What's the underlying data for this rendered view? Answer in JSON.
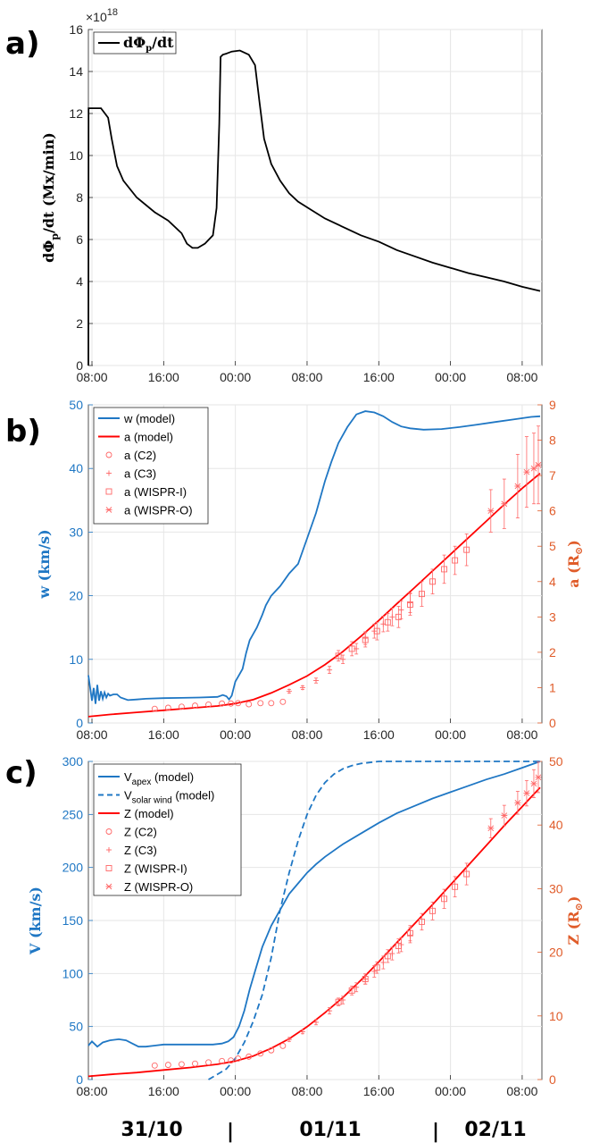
{
  "chart_data": [
    {
      "panel_label": "a)",
      "type": "line",
      "ylabel_parts": [
        "dΦ",
        "p",
        "/dt (Mx/min)"
      ],
      "y_multiplier_base": "×10",
      "y_multiplier_exp": "18",
      "ylim": [
        0,
        16
      ],
      "y_ticks": [
        "0",
        "2",
        "4",
        "6",
        "8",
        "10",
        "12",
        "14",
        "16"
      ],
      "x_ticks": [
        "08:00",
        "16:00",
        "00:00",
        "08:00",
        "16:00",
        "00:00",
        "08:00"
      ],
      "x_tick_hours": [
        8,
        16,
        24,
        32,
        40,
        48,
        56
      ],
      "xlim_hours": [
        7.6,
        58.2
      ],
      "legend": [
        {
          "label_parts": [
            "dΦ",
            "p",
            "/dt"
          ],
          "color": "#000000",
          "style": "solid"
        }
      ],
      "series": [
        {
          "name": "dΦp/dt",
          "color": "#000000",
          "x": [
            7.6,
            7.62,
            7.8,
            9,
            9.8,
            10.2,
            10.8,
            11.5,
            13,
            15,
            16.5,
            18,
            18.6,
            19.2,
            19.8,
            20.6,
            21.5,
            21.9,
            22.2,
            22.35,
            22.6,
            23,
            23.6,
            24.5,
            25.5,
            26.2,
            26.7,
            27.2,
            28,
            29,
            30,
            31,
            32.5,
            34,
            36,
            38,
            40,
            42,
            44,
            46,
            48,
            50,
            52,
            54,
            56,
            58
          ],
          "y": [
            0,
            12.25,
            12.25,
            12.25,
            11.8,
            10.8,
            9.5,
            8.8,
            8.0,
            7.3,
            6.9,
            6.3,
            5.8,
            5.6,
            5.6,
            5.8,
            6.2,
            7.5,
            11.5,
            14.7,
            14.8,
            14.85,
            14.95,
            15.0,
            14.8,
            14.3,
            12.5,
            10.8,
            9.6,
            8.8,
            8.2,
            7.8,
            7.4,
            7.0,
            6.6,
            6.2,
            5.9,
            5.5,
            5.2,
            4.9,
            4.65,
            4.4,
            4.2,
            4.0,
            3.75,
            3.55
          ]
        }
      ]
    },
    {
      "panel_label": "b)",
      "type": "line",
      "ylabel_left": "w (km/s)",
      "ylabel_right_parts": [
        "a (R",
        "⊙",
        ")"
      ],
      "ylim_left": [
        0,
        50
      ],
      "ylim_right": [
        0,
        9
      ],
      "y_ticks_left": [
        "0",
        "10",
        "20",
        "30",
        "40",
        "50"
      ],
      "y_ticks_right": [
        "0",
        "1",
        "2",
        "3",
        "4",
        "5",
        "6",
        "7",
        "8",
        "9"
      ],
      "x_ticks": [
        "08:00",
        "16:00",
        "00:00",
        "08:00",
        "16:00",
        "00:00",
        "08:00"
      ],
      "x_tick_hours": [
        8,
        16,
        24,
        32,
        40,
        48,
        56
      ],
      "xlim_hours": [
        7.6,
        58.2
      ],
      "colors": {
        "left_axis": "#1f77c4",
        "right_axis": "#e05c2a",
        "model_a": "#ff0000",
        "obs": "#ff6666"
      },
      "legend": [
        "w (model)",
        "a (model)",
        "a (C2)",
        "a (C3)",
        "a (WISPR-I)",
        "a (WISPR-O)"
      ],
      "series": [
        {
          "name": "w (model)",
          "axis": "left",
          "color": "#1f77c4",
          "x": [
            7.6,
            8.0,
            8.2,
            8.4,
            8.6,
            8.8,
            9.0,
            9.2,
            9.4,
            9.6,
            9.8,
            10.0,
            10.4,
            10.8,
            11.2,
            12,
            13,
            14,
            16,
            18,
            20,
            22,
            22.6,
            23.0,
            23.3,
            23.6,
            24,
            24.4,
            24.8,
            25.2,
            25.6,
            26,
            26.4,
            27,
            27.4,
            28,
            29,
            29.5,
            30,
            31,
            32,
            33,
            34,
            34.7,
            35.5,
            36.5,
            37.5,
            38.5,
            39.5,
            40.5,
            41.5,
            42.5,
            43.5,
            45,
            47,
            49,
            51,
            53,
            55,
            57,
            58
          ],
          "y": [
            7.5,
            3.5,
            5.5,
            3.0,
            6.0,
            3.5,
            5.0,
            3.8,
            4.8,
            4.0,
            4.6,
            4.3,
            4.5,
            4.5,
            4.0,
            3.6,
            3.7,
            3.8,
            3.9,
            3.95,
            4.0,
            4.1,
            4.4,
            4.2,
            3.7,
            4.3,
            6.5,
            7.5,
            8.5,
            11,
            13,
            14,
            15,
            17,
            18.5,
            20,
            21.5,
            22.5,
            23.5,
            25,
            29,
            33,
            38,
            41,
            44,
            46.5,
            48.5,
            49,
            48.8,
            48.2,
            47.3,
            46.6,
            46.3,
            46.1,
            46.2,
            46.5,
            46.9,
            47.3,
            47.7,
            48.1,
            48.2
          ]
        },
        {
          "name": "a (model)",
          "axis": "right",
          "color": "#ff0000",
          "x": [
            7.6,
            10,
            13,
            16,
            19,
            22,
            24,
            26,
            28,
            30,
            32,
            34,
            36,
            38,
            40,
            42,
            44,
            46,
            48,
            50,
            52,
            54,
            56,
            58
          ],
          "y": [
            0.18,
            0.24,
            0.3,
            0.36,
            0.42,
            0.48,
            0.55,
            0.66,
            0.85,
            1.08,
            1.33,
            1.65,
            2.02,
            2.45,
            2.9,
            3.37,
            3.83,
            4.3,
            4.77,
            5.24,
            5.71,
            6.18,
            6.64,
            7.06
          ]
        },
        {
          "name": "a (C2)",
          "axis": "right",
          "marker": "circle",
          "x": [
            15,
            16.5,
            18,
            19.5,
            21,
            22.5,
            23.5,
            24.3,
            25.5,
            26.8,
            28,
            29.3
          ],
          "y": [
            0.4,
            0.43,
            0.46,
            0.49,
            0.52,
            0.55,
            0.55,
            0.56,
            0.53,
            0.56,
            0.56,
            0.6
          ]
        },
        {
          "name": "a (C3)",
          "axis": "right",
          "marker": "plus",
          "x": [
            30,
            31.5,
            33,
            34.5,
            36,
            37.5,
            38.5,
            39.5,
            40.5,
            41.5,
            42.5,
            43.5
          ],
          "y": [
            0.9,
            1.0,
            1.2,
            1.5,
            1.8,
            2.1,
            2.4,
            2.6,
            2.8,
            3.0,
            3.2,
            3.4
          ],
          "err": [
            0.05,
            0.05,
            0.07,
            0.1,
            0.12,
            0.15,
            0.18,
            0.2,
            0.22,
            0.25,
            0.25,
            0.28
          ]
        },
        {
          "name": "a (WISPR-I)",
          "axis": "right",
          "marker": "square",
          "x": [
            35.5,
            37,
            38.5,
            39.8,
            41,
            42.2,
            43.5,
            44.8,
            46,
            47.3,
            48.5,
            49.8
          ],
          "y": [
            1.9,
            2.1,
            2.35,
            2.6,
            2.85,
            3.0,
            3.35,
            3.65,
            4.0,
            4.35,
            4.6,
            4.9
          ],
          "err": [
            0.15,
            0.2,
            0.2,
            0.25,
            0.25,
            0.3,
            0.3,
            0.35,
            0.35,
            0.4,
            0.4,
            0.45
          ]
        },
        {
          "name": "a (WISPR-O)",
          "axis": "right",
          "marker": "star",
          "x": [
            52.5,
            54,
            55.5,
            56.5,
            57.3,
            57.8
          ],
          "y": [
            6.0,
            6.2,
            6.7,
            7.1,
            7.2,
            7.3
          ],
          "err": [
            0.6,
            0.7,
            0.9,
            1.0,
            1.0,
            1.1
          ]
        }
      ]
    },
    {
      "panel_label": "c)",
      "type": "line",
      "ylabel_left": "V (km/s)",
      "ylabel_right_parts": [
        "Z (R",
        "⊙",
        ")"
      ],
      "ylim_left": [
        0,
        300
      ],
      "ylim_right": [
        0,
        50
      ],
      "y_ticks_left": [
        "0",
        "50",
        "100",
        "150",
        "200",
        "250",
        "300"
      ],
      "y_ticks_right": [
        "0",
        "10",
        "20",
        "30",
        "40",
        "50"
      ],
      "x_ticks": [
        "08:00",
        "16:00",
        "00:00",
        "08:00",
        "16:00",
        "00:00",
        "08:00"
      ],
      "x_tick_hours": [
        8,
        16,
        24,
        32,
        40,
        48,
        56
      ],
      "xlim_hours": [
        7.6,
        58.2
      ],
      "colors": {
        "left_axis": "#1f77c4",
        "right_axis": "#e05c2a",
        "model_z": "#ff0000",
        "obs": "#ff6666"
      },
      "legend": [
        {
          "label": "V",
          "sub": "apex",
          "rest": " (model)"
        },
        {
          "label": "V",
          "sub": "solar wind",
          "rest": " (model)"
        },
        {
          "label": "Z (model)"
        },
        {
          "label": "Z (C2)"
        },
        {
          "label": "Z (C3)"
        },
        {
          "label": "Z (WISPR-I)"
        },
        {
          "label": "Z (WISPR-O)"
        }
      ],
      "series": [
        {
          "name": "Vapex (model)",
          "axis": "left",
          "color": "#1f77c4",
          "x": [
            7.6,
            8.0,
            8.6,
            9.2,
            10,
            11,
            11.8,
            12.5,
            13.2,
            14,
            15,
            16,
            18,
            20,
            21.5,
            22.5,
            23.2,
            23.8,
            24.4,
            25,
            25.6,
            26.3,
            27,
            28,
            29,
            30,
            31,
            32,
            33,
            34,
            36,
            38,
            40,
            42,
            44,
            46,
            48,
            50,
            52,
            54,
            56,
            58
          ],
          "y": [
            32,
            36,
            31,
            35,
            37,
            38,
            37,
            34,
            31,
            31,
            32,
            33,
            33,
            33,
            33,
            34,
            36,
            40,
            50,
            65,
            85,
            105,
            125,
            145,
            160,
            175,
            185,
            195,
            203,
            210,
            222,
            232,
            242,
            251,
            258,
            265,
            271,
            277,
            283,
            288,
            294,
            300
          ]
        },
        {
          "name": "Vsolar wind (model)",
          "axis": "left",
          "color": "#1f77c4",
          "style": "dashed",
          "x": [
            21,
            22,
            23,
            24,
            25,
            26,
            27,
            28,
            29,
            30,
            31,
            32,
            33,
            34,
            35,
            36,
            37,
            38,
            39,
            40,
            41,
            42,
            44,
            46,
            58
          ],
          "y": [
            0,
            5,
            10,
            20,
            35,
            55,
            80,
            115,
            160,
            195,
            225,
            250,
            268,
            280,
            288,
            293,
            296,
            298,
            299,
            300,
            300,
            300,
            300,
            300,
            300
          ]
        },
        {
          "name": "Z (model)",
          "axis": "right",
          "color": "#ff0000",
          "x": [
            7.6,
            10,
            13,
            16,
            19,
            22,
            24,
            26,
            28,
            30,
            32,
            34,
            36,
            38,
            40,
            42,
            44,
            46,
            48,
            50,
            52,
            54,
            56,
            58
          ],
          "y": [
            0.5,
            0.8,
            1.1,
            1.5,
            1.9,
            2.4,
            2.9,
            3.7,
            4.9,
            6.4,
            8.3,
            10.5,
            12.9,
            15.6,
            18.5,
            21.5,
            24.5,
            27.5,
            30.6,
            33.7,
            36.8,
            39.9,
            42.9,
            45.9
          ]
        },
        {
          "name": "Z (C2)",
          "axis": "right",
          "marker": "circle",
          "x": [
            15,
            16.5,
            18,
            19.5,
            21,
            22.5,
            23.5,
            24.3,
            25.5,
            26.8,
            28,
            29.3
          ],
          "y": [
            2.2,
            2.3,
            2.4,
            2.5,
            2.7,
            2.9,
            3.0,
            3.3,
            3.6,
            4.1,
            4.6,
            5.3
          ]
        },
        {
          "name": "Z (C3)",
          "axis": "right",
          "marker": "plus",
          "x": [
            30,
            31.5,
            33,
            34.5,
            36,
            37.5,
            38.5,
            39.5,
            40.5,
            41.5,
            42.5,
            43.5
          ],
          "y": [
            6.3,
            7.5,
            9.0,
            10.8,
            12.5,
            14.5,
            15.8,
            17.0,
            18.4,
            19.8,
            21.2,
            22.7
          ],
          "err": [
            0.3,
            0.3,
            0.4,
            0.5,
            0.6,
            0.7,
            0.8,
            0.9,
            1.0,
            1.0,
            1.1,
            1.2
          ]
        },
        {
          "name": "Z (WISPR-I)",
          "axis": "right",
          "marker": "square",
          "x": [
            35.5,
            37,
            38.5,
            39.8,
            41,
            42.2,
            43.5,
            44.8,
            46,
            47.3,
            48.5,
            49.8
          ],
          "y": [
            12.2,
            14.0,
            15.8,
            17.6,
            19.4,
            21.0,
            23.0,
            24.8,
            26.5,
            28.4,
            30.3,
            32.3
          ],
          "err": [
            0.6,
            0.7,
            0.8,
            0.9,
            1.0,
            1.1,
            1.2,
            1.3,
            1.4,
            1.5,
            1.6,
            1.7
          ]
        },
        {
          "name": "Z (WISPR-O)",
          "axis": "right",
          "marker": "star",
          "x": [
            52.5,
            54,
            55.5,
            56.5,
            57.3,
            57.8
          ],
          "y": [
            39.5,
            41.5,
            43.5,
            45.0,
            46.5,
            47.5
          ],
          "err": [
            1.5,
            1.6,
            1.8,
            2.0,
            2.2,
            2.4
          ]
        }
      ]
    }
  ],
  "date_labels": [
    "31/10",
    "01/11",
    "02/11"
  ],
  "date_separator": "|"
}
